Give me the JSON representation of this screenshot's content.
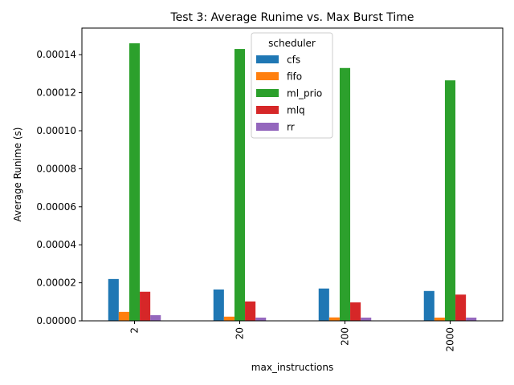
{
  "chart_data": {
    "type": "bar",
    "title": "Test 3: Average Runime vs. Max Burst Time",
    "xlabel": "max_instructions",
    "ylabel": "Average Runime (s)",
    "categories": [
      "2",
      "20",
      "200",
      "2000"
    ],
    "ylim": [
      0,
      0.000154
    ],
    "yticks": [
      0,
      2e-05,
      4e-05,
      6e-05,
      8e-05,
      0.0001,
      0.00012,
      0.00014
    ],
    "ytick_labels": [
      "0.00000",
      "0.00002",
      "0.00004",
      "0.00006",
      "0.00008",
      "0.00010",
      "0.00012",
      "0.00014"
    ],
    "grid": false,
    "legend": {
      "title": "scheduler",
      "placement": "upper center"
    },
    "series": [
      {
        "name": "cfs",
        "color": "#1f77b4",
        "values": [
          2.2e-05,
          1.65e-05,
          1.7e-05,
          1.57e-05
        ]
      },
      {
        "name": "fifo",
        "color": "#ff7f0e",
        "values": [
          4.7e-06,
          2.2e-06,
          1.8e-06,
          1.7e-06
        ]
      },
      {
        "name": "ml_prio",
        "color": "#2ca02c",
        "values": [
          0.000146,
          0.000143,
          0.000133,
          0.0001265
        ]
      },
      {
        "name": "mlq",
        "color": "#d62728",
        "values": [
          1.53e-05,
          1.02e-05,
          9.7e-06,
          1.38e-05
        ]
      },
      {
        "name": "rr",
        "color": "#9467bd",
        "values": [
          3e-06,
          1.7e-06,
          1.7e-06,
          1.7e-06
        ]
      }
    ]
  }
}
